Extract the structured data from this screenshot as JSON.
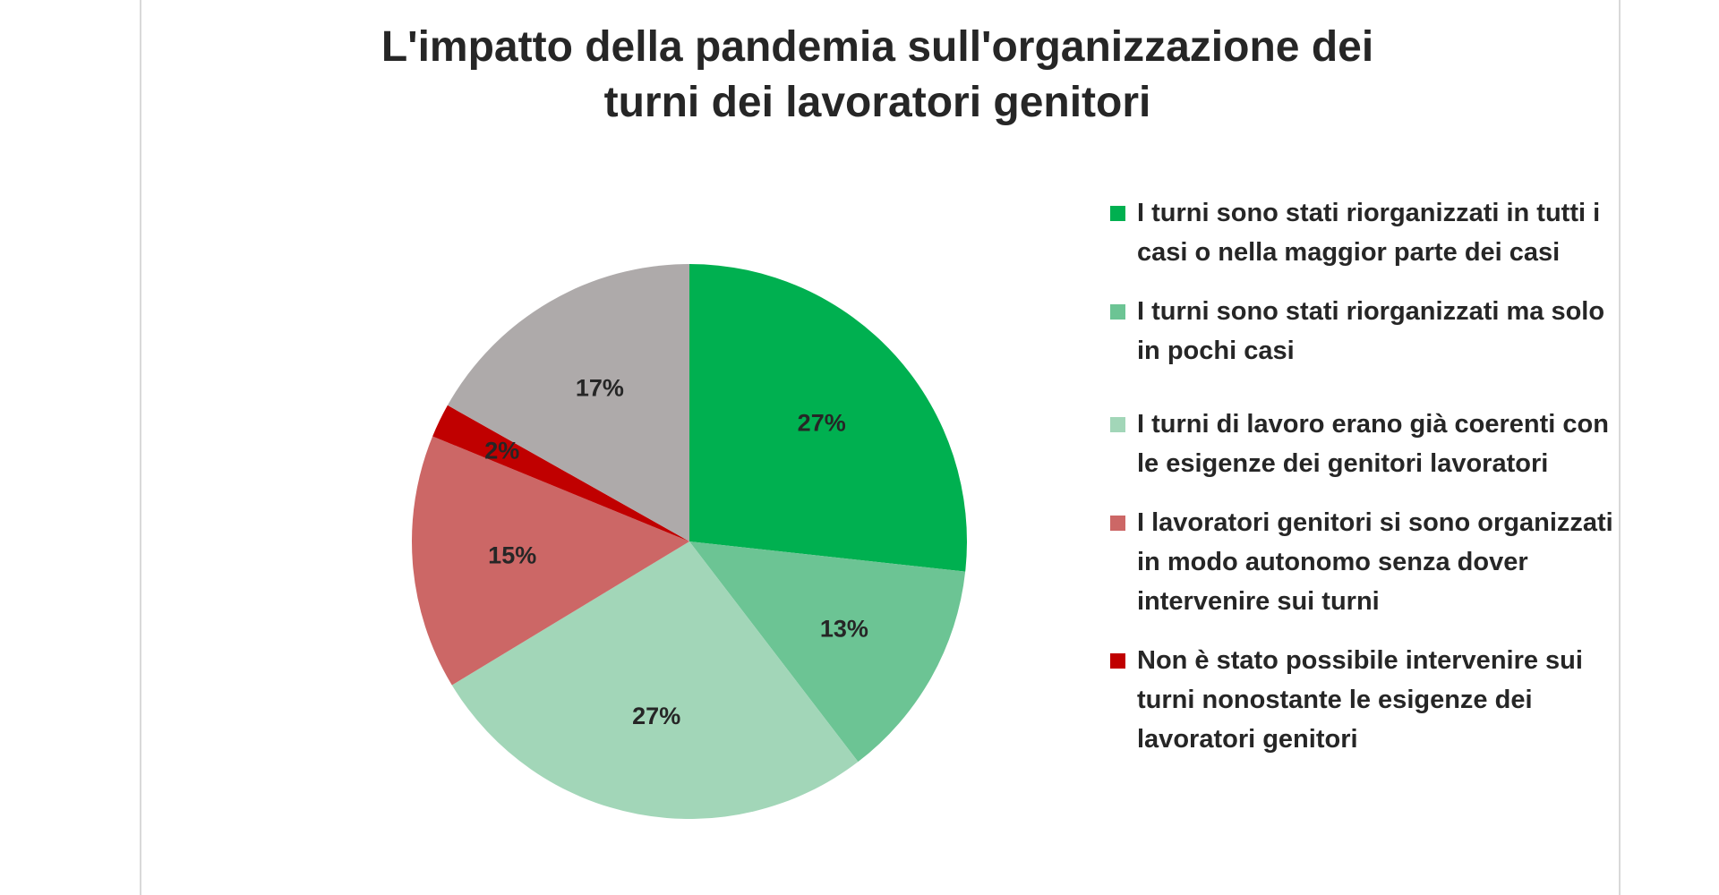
{
  "chart_data": {
    "type": "pie",
    "title": "L'impatto della pandemia sull'organizzazione dei turni dei lavoratori genitori",
    "title_lines": [
      "L'impatto della pandemia sull'organizzazione dei",
      "turni dei lavoratori genitori"
    ],
    "legend_position": "right",
    "slices": [
      {
        "label": "I turni sono stati riorganizzati in tutti i casi o nella maggior parte dei casi",
        "value": 27,
        "data_label": "27%",
        "color": "#00b050"
      },
      {
        "label": "I turni sono stati riorganizzati ma solo in pochi casi",
        "value": 13,
        "data_label": "13%",
        "color": "#6cc494"
      },
      {
        "label": "I turni di lavoro erano già coerenti con le esigenze dei genitori lavoratori",
        "value": 27,
        "data_label": "27%",
        "color": "#a2d6b8"
      },
      {
        "label": "I lavoratori genitori si sono organizzati in modo autonomo senza dover intervenire sui turni",
        "value": 15,
        "data_label": "15%",
        "color": "#cc6766"
      },
      {
        "label": "Non è stato possibile intervenire sui turni nonostante le esigenze dei lavoratori genitori",
        "value": 2,
        "data_label": "2%",
        "color": "#c00000"
      },
      {
        "label": "",
        "value": 17,
        "data_label": "17%",
        "color": "#aeaaaa"
      }
    ]
  }
}
